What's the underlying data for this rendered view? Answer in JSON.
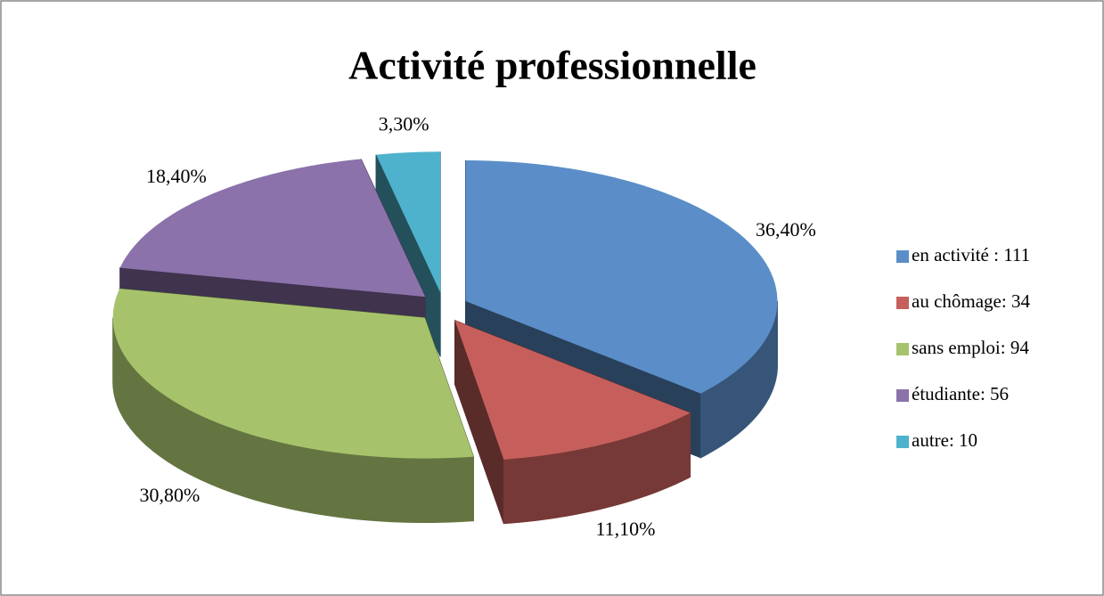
{
  "chart_data": {
    "type": "pie",
    "title": "Activité professionnelle",
    "categories": [
      "en activité : 111",
      "au chômage: 34",
      "sans emploi: 94",
      "étudiante: 56",
      "autre: 10"
    ],
    "values": [
      36.4,
      11.1,
      30.8,
      18.4,
      3.3
    ],
    "value_labels": [
      "36,40%",
      "11,10%",
      "30,80%",
      "18,40%",
      "3,30%"
    ],
    "colors": [
      "#5b8ec8",
      "#c65f5c",
      "#a6c36c",
      "#8b72ab",
      "#4fb2cc"
    ],
    "legend": "right"
  }
}
